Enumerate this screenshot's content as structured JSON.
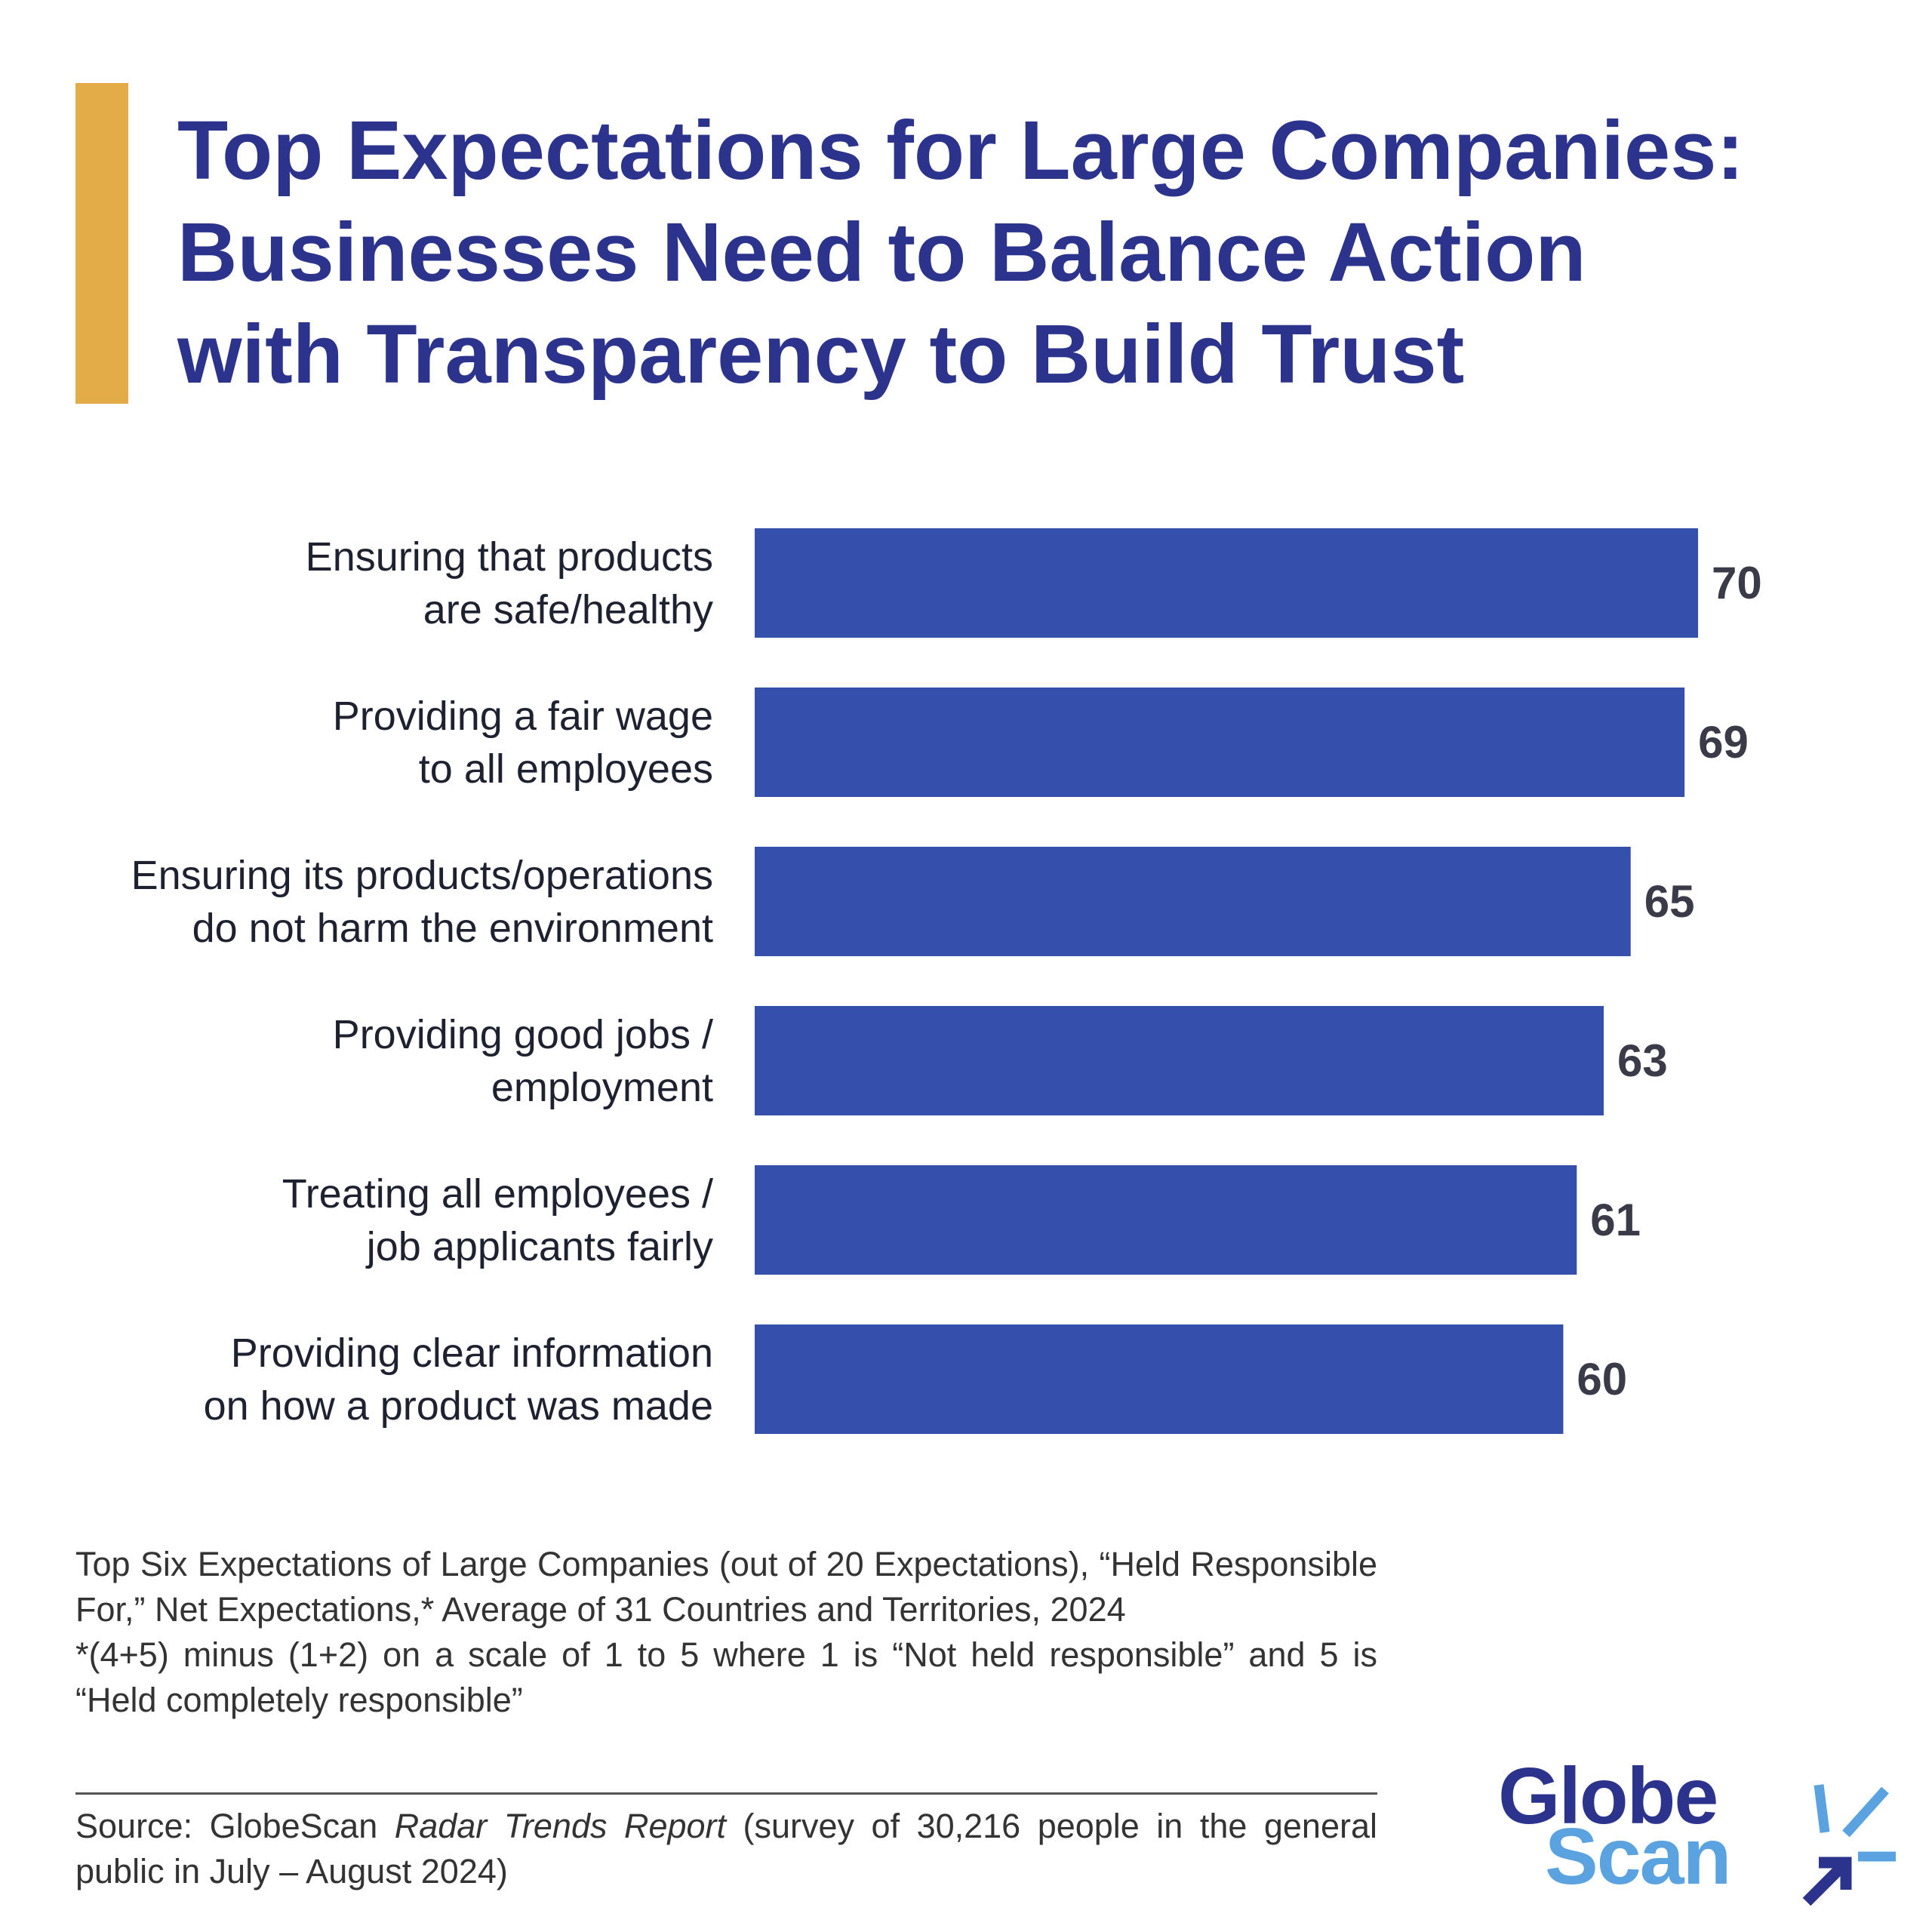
{
  "title": {
    "line1": "Top Expectations for Large Companies:",
    "line2": "Businesses Need to Balance Action",
    "line3": "with Transparency to Build Trust"
  },
  "colors": {
    "accent": "#E3AC49",
    "title": "#2B338C",
    "bar": "#354FAD",
    "logo_primary": "#2B338C",
    "logo_secondary": "#5BA3E0"
  },
  "chart_data": {
    "type": "bar",
    "orientation": "horizontal",
    "categories": [
      "Ensuring that products\nare safe/healthy",
      "Providing a fair wage\nto all employees",
      "Ensuring its products/operations\ndo not harm the environment",
      "Providing good jobs /\nemployment",
      "Treating all employees /\njob applicants fairly",
      "Providing clear information\non how a product was made"
    ],
    "values": [
      70,
      69,
      65,
      63,
      61,
      60
    ],
    "data_labels": [
      "70",
      "69",
      "65",
      "63",
      "61",
      "60"
    ],
    "xlim": [
      0,
      70
    ],
    "grid": false,
    "legend": "none"
  },
  "notes": {
    "line1": "Top Six Expectations of Large Companies (out of 20 Expectations), “Held Responsible For,” Net Expectations,* Average of 31 Countries and Territories, 2024",
    "line2": "*(4+5) minus (1+2) on a scale of 1 to 5 where 1 is “Not held responsible” and 5 is “Held completely responsible”"
  },
  "source": {
    "prefix": "Source: GlobeScan ",
    "report": "Radar Trends Report",
    "suffix": " (survey of 30,216 people in the general public in July – August 2024)"
  },
  "logo": {
    "line1": "Globe",
    "line2": "Scan"
  }
}
